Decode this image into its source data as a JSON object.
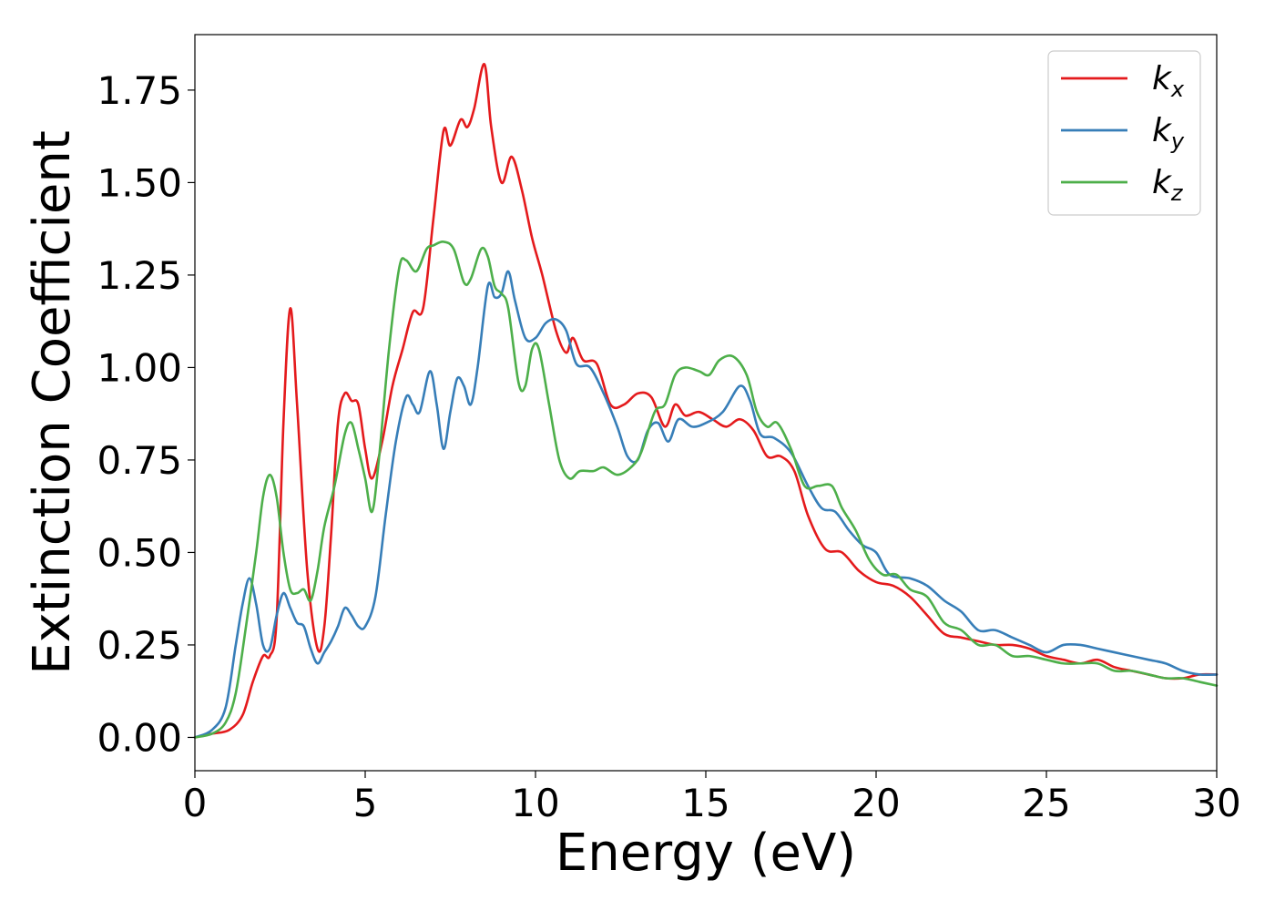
{
  "chart_data": {
    "type": "line",
    "title": "",
    "xlabel": "Energy (eV)",
    "ylabel": "Extinction Coefficient",
    "xlim": [
      0,
      30
    ],
    "ylim": [
      -0.09,
      1.9
    ],
    "xticks": [
      0,
      5,
      10,
      15,
      20,
      25,
      30
    ],
    "xtick_labels": [
      "0",
      "5",
      "10",
      "15",
      "20",
      "25",
      "30"
    ],
    "yticks": [
      0,
      0.25,
      0.5,
      0.75,
      1.0,
      1.25,
      1.5,
      1.75
    ],
    "ytick_labels": [
      "0.00",
      "0.25",
      "0.50",
      "0.75",
      "1.00",
      "1.25",
      "1.50",
      "1.75"
    ],
    "grid": false,
    "legend": "top-right",
    "series": [
      {
        "name": "k",
        "subscript": "x",
        "color": "#e41a1c",
        "points": [
          [
            0,
            0
          ],
          [
            0.5,
            0.01
          ],
          [
            1.0,
            0.02
          ],
          [
            1.4,
            0.06
          ],
          [
            1.7,
            0.15
          ],
          [
            2.0,
            0.22
          ],
          [
            2.2,
            0.22
          ],
          [
            2.4,
            0.32
          ],
          [
            2.6,
            0.85
          ],
          [
            2.8,
            1.16
          ],
          [
            3.0,
            0.9
          ],
          [
            3.3,
            0.45
          ],
          [
            3.6,
            0.24
          ],
          [
            3.8,
            0.3
          ],
          [
            4.0,
            0.55
          ],
          [
            4.2,
            0.85
          ],
          [
            4.4,
            0.93
          ],
          [
            4.6,
            0.91
          ],
          [
            4.8,
            0.9
          ],
          [
            5.0,
            0.78
          ],
          [
            5.2,
            0.7
          ],
          [
            5.5,
            0.8
          ],
          [
            5.8,
            0.95
          ],
          [
            6.1,
            1.05
          ],
          [
            6.4,
            1.15
          ],
          [
            6.7,
            1.16
          ],
          [
            7.0,
            1.4
          ],
          [
            7.3,
            1.64
          ],
          [
            7.5,
            1.6
          ],
          [
            7.8,
            1.67
          ],
          [
            8.0,
            1.65
          ],
          [
            8.2,
            1.7
          ],
          [
            8.5,
            1.82
          ],
          [
            8.7,
            1.65
          ],
          [
            9.0,
            1.5
          ],
          [
            9.3,
            1.57
          ],
          [
            9.6,
            1.48
          ],
          [
            9.9,
            1.35
          ],
          [
            10.2,
            1.25
          ],
          [
            10.6,
            1.1
          ],
          [
            10.9,
            1.04
          ],
          [
            11.1,
            1.08
          ],
          [
            11.4,
            1.02
          ],
          [
            11.8,
            1.01
          ],
          [
            12.2,
            0.9
          ],
          [
            12.6,
            0.9
          ],
          [
            13.0,
            0.93
          ],
          [
            13.4,
            0.92
          ],
          [
            13.8,
            0.84
          ],
          [
            14.1,
            0.9
          ],
          [
            14.4,
            0.87
          ],
          [
            14.8,
            0.88
          ],
          [
            15.2,
            0.86
          ],
          [
            15.6,
            0.84
          ],
          [
            16.0,
            0.86
          ],
          [
            16.4,
            0.83
          ],
          [
            16.8,
            0.76
          ],
          [
            17.2,
            0.76
          ],
          [
            17.6,
            0.72
          ],
          [
            18.0,
            0.6
          ],
          [
            18.5,
            0.51
          ],
          [
            19.0,
            0.5
          ],
          [
            19.5,
            0.45
          ],
          [
            20.0,
            0.42
          ],
          [
            20.5,
            0.41
          ],
          [
            21.0,
            0.38
          ],
          [
            21.5,
            0.33
          ],
          [
            22.0,
            0.28
          ],
          [
            22.5,
            0.27
          ],
          [
            23.0,
            0.26
          ],
          [
            23.5,
            0.25
          ],
          [
            24.0,
            0.25
          ],
          [
            24.5,
            0.24
          ],
          [
            25.0,
            0.22
          ],
          [
            25.5,
            0.21
          ],
          [
            26.0,
            0.2
          ],
          [
            26.5,
            0.21
          ],
          [
            27.0,
            0.19
          ],
          [
            27.5,
            0.18
          ],
          [
            28.0,
            0.17
          ],
          [
            28.5,
            0.16
          ],
          [
            29.0,
            0.16
          ],
          [
            29.5,
            0.17
          ],
          [
            30.0,
            0.17
          ]
        ]
      },
      {
        "name": "k",
        "subscript": "y",
        "color": "#377eb8",
        "points": [
          [
            0,
            0
          ],
          [
            0.5,
            0.02
          ],
          [
            0.9,
            0.08
          ],
          [
            1.2,
            0.25
          ],
          [
            1.4,
            0.36
          ],
          [
            1.6,
            0.43
          ],
          [
            1.8,
            0.36
          ],
          [
            2.0,
            0.25
          ],
          [
            2.2,
            0.24
          ],
          [
            2.4,
            0.33
          ],
          [
            2.6,
            0.39
          ],
          [
            2.8,
            0.35
          ],
          [
            3.0,
            0.31
          ],
          [
            3.2,
            0.3
          ],
          [
            3.4,
            0.24
          ],
          [
            3.6,
            0.2
          ],
          [
            3.8,
            0.23
          ],
          [
            4.0,
            0.26
          ],
          [
            4.2,
            0.3
          ],
          [
            4.4,
            0.35
          ],
          [
            4.6,
            0.33
          ],
          [
            4.8,
            0.3
          ],
          [
            5.0,
            0.3
          ],
          [
            5.3,
            0.38
          ],
          [
            5.6,
            0.6
          ],
          [
            5.9,
            0.8
          ],
          [
            6.2,
            0.92
          ],
          [
            6.4,
            0.9
          ],
          [
            6.6,
            0.88
          ],
          [
            6.9,
            0.99
          ],
          [
            7.1,
            0.9
          ],
          [
            7.3,
            0.78
          ],
          [
            7.5,
            0.88
          ],
          [
            7.7,
            0.97
          ],
          [
            7.9,
            0.95
          ],
          [
            8.1,
            0.9
          ],
          [
            8.3,
            1.0
          ],
          [
            8.6,
            1.22
          ],
          [
            8.8,
            1.19
          ],
          [
            9.0,
            1.2
          ],
          [
            9.2,
            1.26
          ],
          [
            9.4,
            1.18
          ],
          [
            9.7,
            1.08
          ],
          [
            10.0,
            1.08
          ],
          [
            10.3,
            1.12
          ],
          [
            10.6,
            1.13
          ],
          [
            10.9,
            1.1
          ],
          [
            11.2,
            1.01
          ],
          [
            11.6,
            1.0
          ],
          [
            12.0,
            0.93
          ],
          [
            12.4,
            0.84
          ],
          [
            12.7,
            0.76
          ],
          [
            13.0,
            0.75
          ],
          [
            13.3,
            0.83
          ],
          [
            13.6,
            0.85
          ],
          [
            13.9,
            0.8
          ],
          [
            14.2,
            0.86
          ],
          [
            14.6,
            0.84
          ],
          [
            15.0,
            0.85
          ],
          [
            15.5,
            0.88
          ],
          [
            16.0,
            0.95
          ],
          [
            16.3,
            0.91
          ],
          [
            16.6,
            0.82
          ],
          [
            17.0,
            0.81
          ],
          [
            17.5,
            0.77
          ],
          [
            18.0,
            0.68
          ],
          [
            18.4,
            0.62
          ],
          [
            18.8,
            0.61
          ],
          [
            19.2,
            0.56
          ],
          [
            19.6,
            0.52
          ],
          [
            20.0,
            0.5
          ],
          [
            20.4,
            0.44
          ],
          [
            21.0,
            0.43
          ],
          [
            21.5,
            0.41
          ],
          [
            22.0,
            0.37
          ],
          [
            22.5,
            0.34
          ],
          [
            23.0,
            0.29
          ],
          [
            23.5,
            0.29
          ],
          [
            24.0,
            0.27
          ],
          [
            24.5,
            0.25
          ],
          [
            25.0,
            0.23
          ],
          [
            25.5,
            0.25
          ],
          [
            26.0,
            0.25
          ],
          [
            26.5,
            0.24
          ],
          [
            27.0,
            0.23
          ],
          [
            27.5,
            0.22
          ],
          [
            28.0,
            0.21
          ],
          [
            28.5,
            0.2
          ],
          [
            29.0,
            0.18
          ],
          [
            29.5,
            0.17
          ],
          [
            30.0,
            0.17
          ]
        ]
      },
      {
        "name": "k",
        "subscript": "z",
        "color": "#4daf4a",
        "points": [
          [
            0,
            0
          ],
          [
            0.5,
            0.01
          ],
          [
            0.9,
            0.04
          ],
          [
            1.2,
            0.12
          ],
          [
            1.5,
            0.3
          ],
          [
            1.8,
            0.5
          ],
          [
            2.0,
            0.65
          ],
          [
            2.2,
            0.71
          ],
          [
            2.4,
            0.65
          ],
          [
            2.6,
            0.5
          ],
          [
            2.8,
            0.4
          ],
          [
            3.0,
            0.39
          ],
          [
            3.2,
            0.4
          ],
          [
            3.4,
            0.37
          ],
          [
            3.6,
            0.45
          ],
          [
            3.8,
            0.57
          ],
          [
            4.1,
            0.68
          ],
          [
            4.4,
            0.82
          ],
          [
            4.6,
            0.85
          ],
          [
            4.8,
            0.78
          ],
          [
            5.0,
            0.7
          ],
          [
            5.2,
            0.61
          ],
          [
            5.4,
            0.75
          ],
          [
            5.7,
            1.05
          ],
          [
            6.0,
            1.27
          ],
          [
            6.2,
            1.29
          ],
          [
            6.5,
            1.26
          ],
          [
            6.8,
            1.32
          ],
          [
            7.0,
            1.33
          ],
          [
            7.3,
            1.34
          ],
          [
            7.6,
            1.32
          ],
          [
            7.9,
            1.23
          ],
          [
            8.1,
            1.24
          ],
          [
            8.4,
            1.32
          ],
          [
            8.6,
            1.3
          ],
          [
            8.8,
            1.22
          ],
          [
            9.0,
            1.2
          ],
          [
            9.2,
            1.16
          ],
          [
            9.5,
            0.96
          ],
          [
            9.7,
            0.95
          ],
          [
            9.9,
            1.05
          ],
          [
            10.1,
            1.05
          ],
          [
            10.4,
            0.9
          ],
          [
            10.7,
            0.75
          ],
          [
            11.0,
            0.7
          ],
          [
            11.3,
            0.72
          ],
          [
            11.7,
            0.72
          ],
          [
            12.0,
            0.73
          ],
          [
            12.4,
            0.71
          ],
          [
            12.8,
            0.73
          ],
          [
            13.1,
            0.77
          ],
          [
            13.5,
            0.88
          ],
          [
            13.8,
            0.9
          ],
          [
            14.1,
            0.98
          ],
          [
            14.4,
            1.0
          ],
          [
            14.8,
            0.99
          ],
          [
            15.1,
            0.98
          ],
          [
            15.4,
            1.02
          ],
          [
            15.8,
            1.03
          ],
          [
            16.2,
            0.98
          ],
          [
            16.5,
            0.88
          ],
          [
            16.8,
            0.84
          ],
          [
            17.1,
            0.85
          ],
          [
            17.5,
            0.78
          ],
          [
            17.9,
            0.68
          ],
          [
            18.3,
            0.68
          ],
          [
            18.7,
            0.68
          ],
          [
            19.0,
            0.62
          ],
          [
            19.4,
            0.56
          ],
          [
            19.8,
            0.48
          ],
          [
            20.2,
            0.44
          ],
          [
            20.6,
            0.44
          ],
          [
            21.0,
            0.4
          ],
          [
            21.5,
            0.38
          ],
          [
            22.0,
            0.31
          ],
          [
            22.5,
            0.29
          ],
          [
            23.0,
            0.25
          ],
          [
            23.5,
            0.25
          ],
          [
            24.0,
            0.22
          ],
          [
            24.5,
            0.22
          ],
          [
            25.0,
            0.21
          ],
          [
            25.5,
            0.2
          ],
          [
            26.0,
            0.2
          ],
          [
            26.5,
            0.2
          ],
          [
            27.0,
            0.18
          ],
          [
            27.5,
            0.18
          ],
          [
            28.0,
            0.17
          ],
          [
            28.5,
            0.16
          ],
          [
            29.0,
            0.16
          ],
          [
            29.5,
            0.15
          ],
          [
            30.0,
            0.14
          ]
        ]
      }
    ]
  }
}
